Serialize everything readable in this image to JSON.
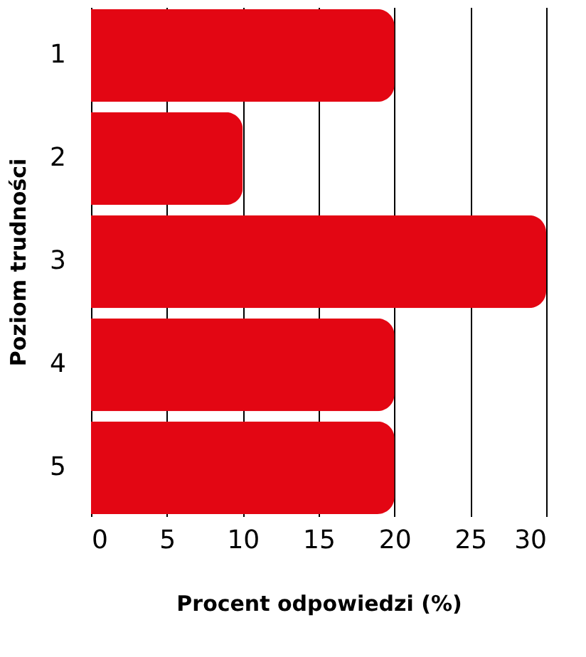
{
  "chart_data": {
    "type": "bar",
    "orientation": "horizontal",
    "categories": [
      "1",
      "2",
      "3",
      "4",
      "5"
    ],
    "values": [
      20,
      10,
      30,
      20,
      20
    ],
    "color": "#e30613",
    "xlim": [
      0,
      30
    ],
    "xticks": [
      0,
      5,
      10,
      15,
      20,
      25,
      30
    ],
    "grid": "x",
    "xlabel": "Procent odpowiedzi (%)",
    "ylabel": "Poziom trudności"
  }
}
